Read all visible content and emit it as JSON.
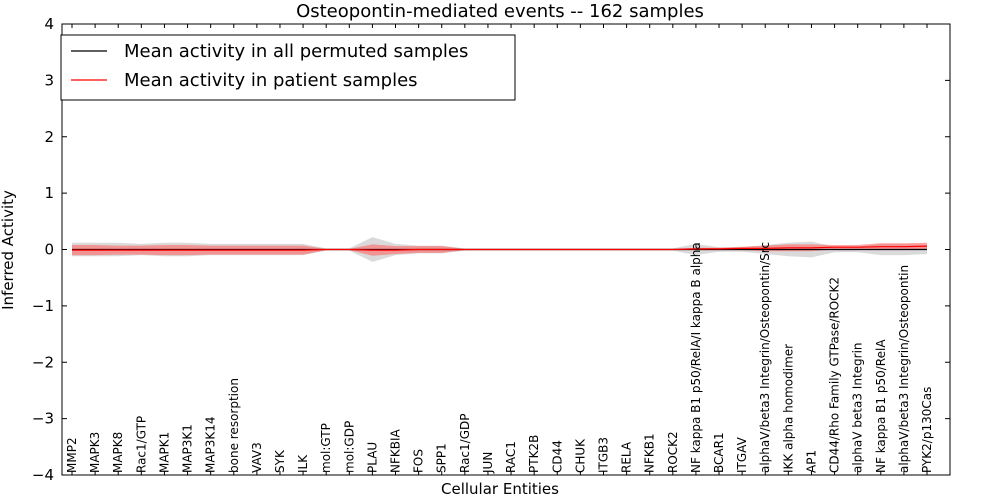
{
  "chart_data": {
    "type": "line",
    "title": "Osteopontin-mediated events -- 162 samples",
    "xlabel": "Cellular Entities",
    "ylabel": "Inferred Activity",
    "ylim": [
      -4,
      4
    ],
    "yticks": [
      -4,
      -3,
      -2,
      -1,
      0,
      1,
      2,
      3,
      4
    ],
    "ytick_labels": [
      "−4",
      "−3",
      "−2",
      "−1",
      "0",
      "1",
      "2",
      "3",
      "4"
    ],
    "legend_position": "top-left",
    "colors": {
      "permuted": "#000000",
      "patient": "#ff0000",
      "permuted_band": "#bbbbbb",
      "patient_band": "#ff6666"
    },
    "categories": [
      "MMP2",
      "MAPK3",
      "MAPK8",
      "Rac1/GTP",
      "MAPK1",
      "MAP3K1",
      "MAP3K14",
      "bone resorption",
      "VAV3",
      "SYK",
      "ILK",
      "mol:GTP",
      "mol:GDP",
      "PLAU",
      "NFKBIA",
      "FOS",
      "SPP1",
      "Rac1/GDP",
      "JUN",
      "RAC1",
      "PTK2B",
      "CD44",
      "CHUK",
      "ITGB3",
      "RELA",
      "NFKB1",
      "ROCK2",
      "NF kappa B1 p50/RelA/I kappa B alpha",
      "BCAR1",
      "ITGAV",
      "alphaV/beta3 Integrin/Osteopontin/Src",
      "IKK alpha homodimer",
      "AP1",
      "CD44/Rho Family GTPase/ROCK2",
      "alphaV beta3 Integrin",
      "NF kappa B1 p50/RelA",
      "alphaV/beta3 Integrin/Osteopontin",
      "PYK2/p130Cas"
    ],
    "series": [
      {
        "name": "Mean activity in all permuted samples",
        "values": [
          0,
          0,
          0,
          0,
          0,
          0,
          0,
          0,
          0,
          0,
          0,
          0,
          0,
          0,
          0,
          0,
          0,
          0,
          0,
          0,
          0,
          0,
          0,
          0,
          0,
          0,
          0,
          0,
          0,
          0,
          0,
          0,
          0,
          0,
          0,
          0,
          0,
          0
        ],
        "band": [
          0.12,
          0.12,
          0.12,
          0.1,
          0.12,
          0.12,
          0.1,
          0.1,
          0.1,
          0.1,
          0.1,
          0.02,
          0.02,
          0.22,
          0.1,
          0.07,
          0.07,
          0.02,
          0.02,
          0.02,
          0.02,
          0.02,
          0.02,
          0.02,
          0.02,
          0.02,
          0.02,
          0.1,
          0.04,
          0.04,
          0.08,
          0.12,
          0.14,
          0.05,
          0.05,
          0.1,
          0.1,
          0.08
        ]
      },
      {
        "name": "Mean activity in patient samples",
        "values": [
          -0.01,
          -0.01,
          -0.01,
          -0.01,
          -0.01,
          -0.01,
          -0.01,
          -0.01,
          -0.01,
          -0.01,
          -0.01,
          0.0,
          0.0,
          -0.01,
          -0.01,
          0.0,
          0.0,
          0.0,
          0.0,
          0.0,
          0.0,
          0.0,
          0.0,
          0.0,
          0.0,
          0.0,
          0.0,
          0.01,
          0.01,
          0.02,
          0.02,
          0.03,
          0.03,
          0.04,
          0.04,
          0.05,
          0.05,
          0.06
        ],
        "band": [
          0.09,
          0.09,
          0.08,
          0.08,
          0.09,
          0.09,
          0.08,
          0.08,
          0.08,
          0.08,
          0.08,
          0.01,
          0.01,
          0.1,
          0.07,
          0.06,
          0.06,
          0.01,
          0.01,
          0.01,
          0.01,
          0.01,
          0.01,
          0.01,
          0.01,
          0.01,
          0.01,
          0.02,
          0.02,
          0.03,
          0.05,
          0.06,
          0.06,
          0.04,
          0.04,
          0.06,
          0.06,
          0.06
        ]
      }
    ]
  }
}
